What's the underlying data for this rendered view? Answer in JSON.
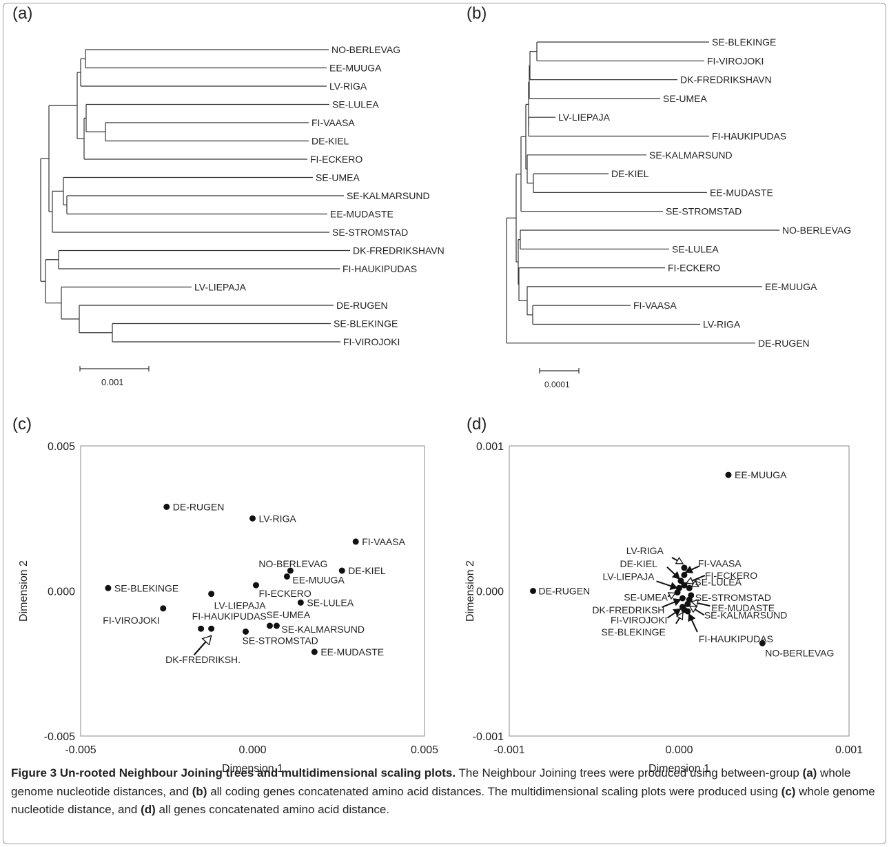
{
  "figure": {
    "panel_labels": {
      "a": "(a)",
      "b": "(b)",
      "c": "(c)",
      "d": "(d)"
    },
    "caption": {
      "title": "Figure 3 Un-rooted Neighbour Joining trees and multidimensional scaling plots.",
      "segments": [
        {
          "text": " The Neighbour Joining trees were produced using between-group ",
          "bold": false
        },
        {
          "text": "(a)",
          "bold": true
        },
        {
          "text": " whole genome nucleotide distances, and ",
          "bold": false
        },
        {
          "text": "(b)",
          "bold": true
        },
        {
          "text": " all coding genes concatenated amino acid distances. The multidimensional scaling plots were produced using ",
          "bold": false
        },
        {
          "text": "(c)",
          "bold": true
        },
        {
          "text": " whole genome nucleotide distance, and ",
          "bold": false
        },
        {
          "text": "(d)",
          "bold": true
        },
        {
          "text": " all genes concatenated amino acid distance.",
          "bold": false
        }
      ]
    }
  },
  "chart_data": [
    {
      "panel": "a",
      "type": "tree",
      "method": "Neighbour Joining (un-rooted)",
      "leaves_order": [
        "NO-BERLEVAG",
        "EE-MUUGA",
        "LV-RIGA",
        "SE-LULEA",
        "FI-VAASA",
        "DE-KIEL",
        "FI-ECKERO",
        "SE-UMEA",
        "SE-KALMARSUND",
        "EE-MUDASTE",
        "SE-STROMSTAD",
        "DK-FREDRIKSHAVN",
        "FI-HAUKIPUDAS",
        "LV-LIEPAJA",
        "DE-RUGEN",
        "SE-BLEKINGE",
        "FI-VIROJOKI"
      ],
      "scale_bar": {
        "label": "0.001",
        "value": 0.001
      },
      "newick_approx": "((((NO-BERLEVAG,EE-MUUGA),LV-RIGA),((SE-LULEA,(FI-VAASA,DE-KIEL)),FI-ECKERO)),((SE-UMEA,(SE-KALMARSUND,EE-MUDASTE)),SE-STROMSTAD),((DK-FREDRIKSHAVN,FI-HAUKIPUDAS),(LV-LIEPAJA,(DE-RUGEN,(SE-BLEKINGE,FI-VIROJOKI)))));"
    },
    {
      "panel": "b",
      "type": "tree",
      "method": "Neighbour Joining (un-rooted)",
      "leaves_order": [
        "SE-BLEKINGE",
        "FI-VIROJOKI",
        "DK-FREDRIKSHAVN",
        "SE-UMEA",
        "LV-LIEPAJA",
        "FI-HAUKIPUDAS",
        "SE-KALMARSUND",
        "DE-KIEL",
        "EE-MUDASTE",
        "SE-STROMSTAD",
        "NO-BERLEVAG",
        "SE-LULEA",
        "FI-ECKERO",
        "EE-MUUGA",
        "FI-VAASA",
        "LV-RIGA",
        "DE-RUGEN"
      ],
      "scale_bar": {
        "label": "0.0001",
        "value": 0.0001
      }
    },
    {
      "panel": "c",
      "type": "scatter",
      "title": "",
      "xlabel": "Dimension 1",
      "ylabel": "Dimension 2",
      "xlim": [
        -0.005,
        0.005
      ],
      "ylim": [
        -0.005,
        0.005
      ],
      "xticks": [
        "-0.005",
        "0.000",
        "0.005"
      ],
      "yticks": [
        "0.005",
        "0.000",
        "-0.005"
      ],
      "points": [
        {
          "label": "DE-RUGEN",
          "x": -0.0025,
          "y": 0.0029
        },
        {
          "label": "LV-RIGA",
          "x": 0.0,
          "y": 0.0025
        },
        {
          "label": "FI-VAASA",
          "x": 0.003,
          "y": 0.0017
        },
        {
          "label": "NO-BERLEVAG",
          "x": 0.0011,
          "y": 0.0007
        },
        {
          "label": "DE-KIEL",
          "x": 0.0026,
          "y": 0.0007
        },
        {
          "label": "EE-MUUGA",
          "x": 0.001,
          "y": 0.0005
        },
        {
          "label": "SE-BLEKINGE",
          "x": -0.0042,
          "y": 0.0001
        },
        {
          "label": "FI-ECKERO",
          "x": 0.0001,
          "y": 0.0002
        },
        {
          "label": "LV-LIEPAJA",
          "x": -0.0012,
          "y": -0.0001
        },
        {
          "label": "SE-LULEA",
          "x": 0.0014,
          "y": -0.0004
        },
        {
          "label": "FI-VIROJOKI",
          "x": -0.0026,
          "y": -0.0006
        },
        {
          "label": "FI-HAUKIPUDAS",
          "x": -0.0015,
          "y": -0.0013
        },
        {
          "label": "DK-FREDRIKSH.",
          "x": -0.0012,
          "y": -0.0013
        },
        {
          "label": "SE-UMEA",
          "x": 0.0005,
          "y": -0.0012
        },
        {
          "label": "SE-KALMARSUND",
          "x": 0.0007,
          "y": -0.0012
        },
        {
          "label": "SE-STROMSTAD",
          "x": -0.0002,
          "y": -0.0014
        },
        {
          "label": "EE-MUDASTE",
          "x": 0.0018,
          "y": -0.0021
        }
      ]
    },
    {
      "panel": "d",
      "type": "scatter",
      "title": "",
      "xlabel": "Dimension 1",
      "ylabel": "Dimension 2",
      "xlim": [
        -0.001,
        0.001
      ],
      "ylim": [
        -0.001,
        0.001
      ],
      "xticks": [
        "-0.001",
        "0.000",
        "0.001"
      ],
      "yticks": [
        "0.001",
        "0.000",
        "-0.001"
      ],
      "points": [
        {
          "label": "EE-MUUGA",
          "x": 0.00029,
          "y": 0.0008
        },
        {
          "label": "DE-RUGEN",
          "x": -0.00086,
          "y": 0.0
        },
        {
          "label": "NO-BERLEVAG",
          "x": 0.00049,
          "y": -0.00036
        },
        {
          "label": "LV-RIGA",
          "x": 3e-05,
          "y": 0.00016
        },
        {
          "label": "FI-VAASA",
          "x": 3e-05,
          "y": 0.00011
        },
        {
          "label": "DE-KIEL",
          "x": 1e-05,
          "y": 7e-05
        },
        {
          "label": "FI-ECKERO",
          "x": 3e-05,
          "y": 4e-05
        },
        {
          "label": "LV-LIEPAJA",
          "x": 0.0,
          "y": 2e-05
        },
        {
          "label": "SE-LULEA",
          "x": 6e-05,
          "y": 2e-05
        },
        {
          "label": "SE-UMEA",
          "x": -1e-05,
          "y": -1e-05
        },
        {
          "label": "SE-STROMSTAD",
          "x": 7e-05,
          "y": -3e-05
        },
        {
          "label": "DK-FREDRIKSH",
          "x": 2e-05,
          "y": -5e-05
        },
        {
          "label": "EE-MUDASTE",
          "x": 6e-05,
          "y": -6e-05
        },
        {
          "label": "SE-KALMARSUND",
          "x": 5e-05,
          "y": -9e-05
        },
        {
          "label": "FI-VIROJOKI",
          "x": 2e-05,
          "y": -0.00011
        },
        {
          "label": "SE-BLEKINGE",
          "x": 3e-05,
          "y": -0.00013
        },
        {
          "label": "FI-HAUKIPUDAS",
          "x": 5e-05,
          "y": -0.00014
        }
      ]
    }
  ]
}
